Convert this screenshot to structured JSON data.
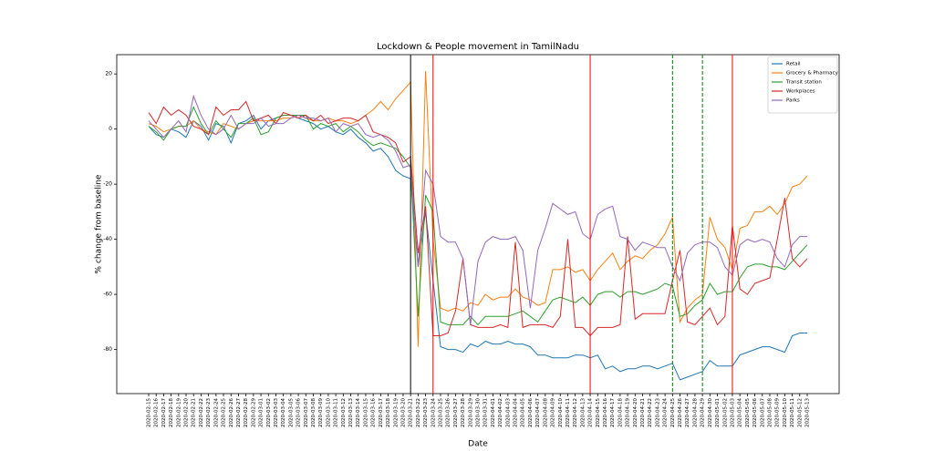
{
  "chart_data": {
    "type": "line",
    "title": "Lockdown & People movement in TamilNadu",
    "x_label": "Date",
    "y_label": "% change from baseline",
    "categories": [
      "2020-02-15",
      "2020-02-16",
      "2020-02-17",
      "2020-02-18",
      "2020-02-19",
      "2020-02-20",
      "2020-02-21",
      "2020-02-22",
      "2020-02-23",
      "2020-02-24",
      "2020-02-25",
      "2020-02-26",
      "2020-02-27",
      "2020-02-28",
      "2020-02-29",
      "2020-03-01",
      "2020-03-02",
      "2020-03-03",
      "2020-03-04",
      "2020-03-05",
      "2020-03-06",
      "2020-03-07",
      "2020-03-08",
      "2020-03-09",
      "2020-03-10",
      "2020-03-11",
      "2020-03-12",
      "2020-03-13",
      "2020-03-14",
      "2020-03-15",
      "2020-03-16",
      "2020-03-17",
      "2020-03-18",
      "2020-03-19",
      "2020-03-20",
      "2020-03-21",
      "2020-03-22",
      "2020-03-23",
      "2020-03-24",
      "2020-03-25",
      "2020-03-26",
      "2020-03-27",
      "2020-03-28",
      "2020-03-29",
      "2020-03-30",
      "2020-03-31",
      "2020-04-01",
      "2020-04-02",
      "2020-04-03",
      "2020-04-04",
      "2020-04-05",
      "2020-04-06",
      "2020-04-07",
      "2020-04-08",
      "2020-04-09",
      "2020-04-10",
      "2020-04-11",
      "2020-04-12",
      "2020-04-13",
      "2020-04-14",
      "2020-04-15",
      "2020-04-16",
      "2020-04-17",
      "2020-04-18",
      "2020-04-19",
      "2020-04-20",
      "2020-04-21",
      "2020-04-22",
      "2020-04-23",
      "2020-04-24",
      "2020-04-25",
      "2020-04-26",
      "2020-04-27",
      "2020-04-28",
      "2020-04-29",
      "2020-04-30",
      "2020-05-01",
      "2020-05-02",
      "2020-05-03",
      "2020-05-04",
      "2020-05-05",
      "2020-05-06",
      "2020-05-07",
      "2020-05-08",
      "2020-05-09",
      "2020-05-10",
      "2020-05-11",
      "2020-05-12",
      "2020-05-13"
    ],
    "series": [
      {
        "name": "Retail",
        "color": "#1f77b4",
        "values": [
          1,
          -2,
          -3,
          0,
          -1,
          -3,
          3,
          1,
          -4,
          2,
          1,
          -5,
          2,
          3,
          5,
          0,
          3,
          4,
          5,
          5,
          4,
          3,
          2,
          0,
          1,
          -1,
          -2,
          0,
          -3,
          -5,
          -8,
          -7,
          -10,
          -15,
          -17,
          -18,
          -50,
          -30,
          -55,
          -79,
          -80,
          -80,
          -81,
          -78,
          -79,
          -77,
          -78,
          -78,
          -77,
          -78,
          -78,
          -79,
          -82,
          -82,
          -83,
          -83,
          -83,
          -82,
          -82,
          -83,
          -82,
          -87,
          -86,
          -88,
          -87,
          -87,
          -86,
          -86,
          -87,
          -86,
          -85,
          -91,
          -90,
          -89,
          -88,
          -84,
          -86,
          -86,
          -86,
          -82,
          -81,
          -80,
          -79,
          -79,
          -80,
          -81,
          -75,
          -74,
          -74
        ]
      },
      {
        "name": "Grocery & Pharmacy",
        "color": "#ff7f0e",
        "values": [
          2,
          1,
          -1,
          0,
          1,
          1,
          3,
          0,
          -1,
          -2,
          2,
          1,
          0,
          2,
          3,
          3,
          3,
          3,
          4,
          4,
          5,
          4,
          3,
          3,
          4,
          3,
          3,
          2,
          3,
          5,
          7,
          10,
          7,
          11,
          14,
          17,
          -79,
          21,
          -40,
          -65,
          -66,
          -65,
          -66,
          -63,
          -64,
          -60,
          -62,
          -61,
          -61,
          -58,
          -61,
          -62,
          -64,
          -63,
          -51,
          -51,
          -50,
          -52,
          -51,
          -55,
          -51,
          -48,
          -45,
          -51,
          -48,
          -46,
          -47,
          -44,
          -42,
          -38,
          -32,
          -70,
          -65,
          -62,
          -60,
          -32,
          -40,
          -43,
          -51,
          -36,
          -35,
          -30,
          -30,
          -28,
          -31,
          -27,
          -21,
          -20,
          -17
        ]
      },
      {
        "name": "Transit station",
        "color": "#2ca02c",
        "values": [
          1,
          -1,
          -4,
          0,
          1,
          1,
          8,
          2,
          -2,
          3,
          0,
          -3,
          2,
          2,
          4,
          -2,
          -1,
          4,
          5,
          5,
          5,
          5,
          0,
          2,
          1,
          2,
          -1,
          1,
          -1,
          -4,
          -6,
          -5,
          -6,
          -7,
          -10,
          -14,
          -68,
          -24,
          -30,
          -70,
          -71,
          -71,
          -71,
          -68,
          -71,
          -68,
          -68,
          -68,
          -68,
          -67,
          -66,
          -68,
          -70,
          -66,
          -62,
          -61,
          -62,
          -63,
          -61,
          -64,
          -60,
          -59,
          -59,
          -61,
          -59,
          -59,
          -60,
          -59,
          -58,
          -56,
          -57,
          -68,
          -67,
          -64,
          -62,
          -56,
          -60,
          -59,
          -59,
          -54,
          -50,
          -49,
          -49,
          -50,
          -50,
          -51,
          -48,
          -45,
          -42
        ]
      },
      {
        "name": "Workplaces",
        "color": "#d62728",
        "values": [
          6,
          2,
          8,
          5,
          7,
          5,
          1,
          0,
          -2,
          8,
          5,
          7,
          7,
          10,
          3,
          4,
          5,
          2,
          6,
          5,
          4,
          5,
          3,
          5,
          2,
          3,
          4,
          4,
          3,
          5,
          -1,
          -2,
          -3,
          -5,
          -12,
          -10,
          -45,
          -28,
          -75,
          -75,
          -74,
          -66,
          -47,
          -71,
          -72,
          -72,
          -72,
          -71,
          -72,
          -41,
          -72,
          -71,
          -71,
          -71,
          -72,
          -68,
          -40,
          -72,
          -72,
          -75,
          -72,
          -72,
          -72,
          -71,
          -39,
          -69,
          -67,
          -67,
          -67,
          -67,
          -55,
          -44,
          -70,
          -71,
          -68,
          -65,
          -71,
          -68,
          -35,
          -58,
          -60,
          -56,
          -55,
          -54,
          -40,
          -25,
          -47,
          -50,
          -47
        ]
      },
      {
        "name": "Parks",
        "color": "#9467bd",
        "values": [
          3,
          0,
          -3,
          0,
          3,
          -1,
          12,
          5,
          0,
          -2,
          0,
          5,
          0,
          2,
          2,
          4,
          1,
          2,
          2,
          4,
          5,
          4,
          4,
          3,
          4,
          -1,
          2,
          1,
          2,
          -2,
          -3,
          -2,
          -4,
          -8,
          -14,
          -13,
          -50,
          -15,
          -20,
          -39,
          -41,
          -41,
          -47,
          -71,
          -48,
          -41,
          -39,
          -40,
          -40,
          -39,
          -44,
          -65,
          -44,
          -36,
          -27,
          -29,
          -31,
          -30,
          -38,
          -40,
          -31,
          -29,
          -28,
          -39,
          -40,
          -44,
          -41,
          -42,
          -43,
          -43,
          -50,
          -55,
          -45,
          -42,
          -41,
          -41,
          -43,
          -50,
          -53,
          -42,
          -40,
          -41,
          -40,
          -41,
          -47,
          -50,
          -42,
          -39,
          -39
        ]
      }
    ],
    "vlines": [
      {
        "x": "2020-03-21",
        "color": "#000000",
        "style": "solid"
      },
      {
        "x": "2020-03-24",
        "color": "#ff0000",
        "style": "solid"
      },
      {
        "x": "2020-04-14",
        "color": "#ff0000",
        "style": "solid"
      },
      {
        "x": "2020-04-25",
        "color": "#008000",
        "style": "dashed"
      },
      {
        "x": "2020-04-29",
        "color": "#008000",
        "style": "dashed"
      },
      {
        "x": "2020-05-03",
        "color": "#ff0000",
        "style": "solid"
      }
    ],
    "ylim": [
      -96,
      27
    ],
    "yticks": [
      -80,
      -60,
      -40,
      -20,
      0,
      20
    ],
    "grid": false,
    "legend": "upper right"
  }
}
